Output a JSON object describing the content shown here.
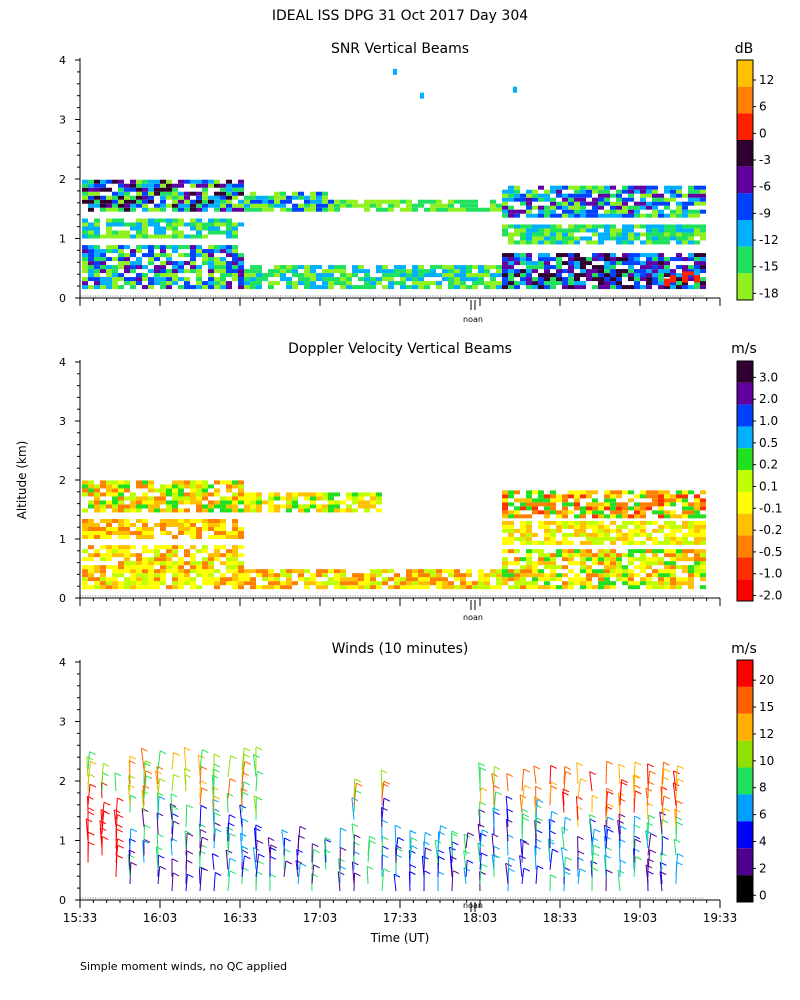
{
  "header": {
    "title": "IDEAL ISS DPG  31 Oct 2017 Day 304",
    "footnote": "Simple moment winds, no QC applied",
    "y_axis_label": "Altitude (km)",
    "x_axis_label": "Time (UT)",
    "noon_marker": "noan"
  },
  "chart_data": [
    {
      "type": "heatmap",
      "title": "SNR Vertical Beams",
      "unit": "dB",
      "ylim": [
        0,
        4
      ],
      "yticks": [
        "0",
        "1",
        "2",
        "3",
        "4"
      ],
      "colorbar": {
        "labels": [
          "12",
          "6",
          "0",
          "-3",
          "-6",
          "-9",
          "-12",
          "-15",
          "-18"
        ],
        "colors": [
          "#FFC000",
          "#FF8000",
          "#FF2000",
          "#300030",
          "#6000A0",
          "#0040FF",
          "#00B0FF",
          "#20E060",
          "#90F020"
        ]
      }
    },
    {
      "type": "heatmap",
      "title": "Doppler Velocity Vertical Beams",
      "unit": "m/s",
      "ylim": [
        0,
        4
      ],
      "yticks": [
        "0",
        "1",
        "2",
        "3",
        "4"
      ],
      "colorbar": {
        "labels": [
          "3.0",
          "2.0",
          "1.0",
          "0.5",
          "0.2",
          "0.1",
          "-0.1",
          "-0.2",
          "-0.5",
          "-1.0",
          "-2.0"
        ],
        "colors": [
          "#300030",
          "#6000A0",
          "#0040FF",
          "#00B0FF",
          "#20E020",
          "#C0FF00",
          "#FFFF00",
          "#FFC000",
          "#FF8000",
          "#FF3000",
          "#FF0000"
        ]
      }
    },
    {
      "type": "scatter",
      "title": "Winds (10 minutes)",
      "unit": "m/s",
      "ylim": [
        0,
        4
      ],
      "yticks": [
        "0",
        "1",
        "2",
        "3",
        "4"
      ],
      "xticks": [
        "15:33",
        "16:03",
        "16:33",
        "17:03",
        "17:33",
        "18:03",
        "18:33",
        "19:03",
        "19:33"
      ],
      "colorbar": {
        "labels": [
          "20",
          "15",
          "12",
          "10",
          "8",
          "6",
          "4",
          "2",
          "0"
        ],
        "colors": [
          "#FF0000",
          "#FF6000",
          "#FFB000",
          "#90E000",
          "#20E060",
          "#00A0FF",
          "#0000FF",
          "#500090",
          "#000000"
        ]
      }
    }
  ]
}
